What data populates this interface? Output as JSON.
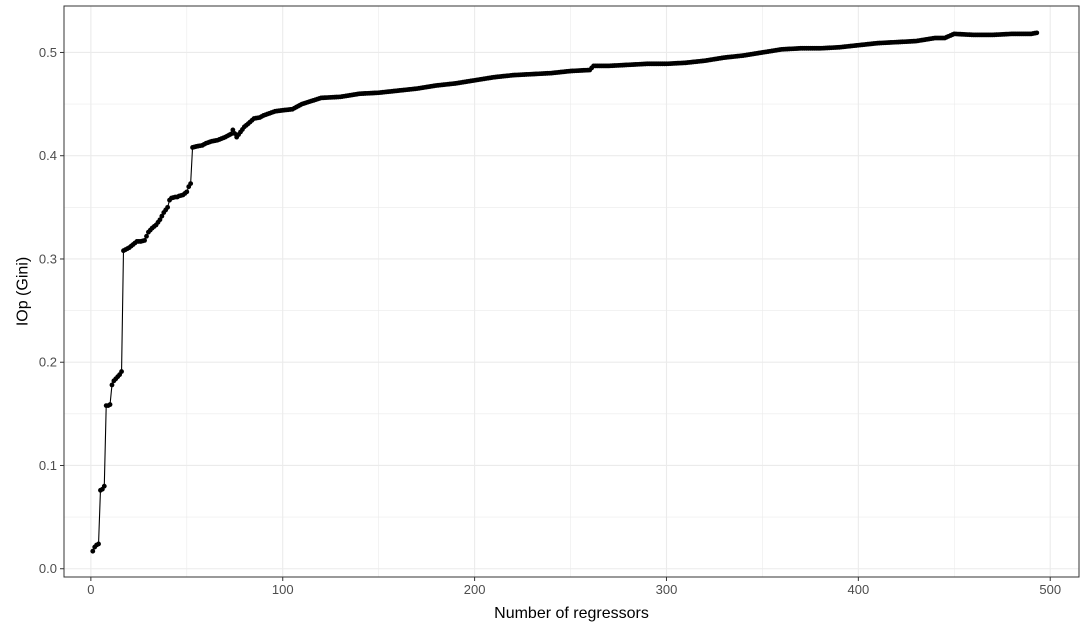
{
  "chart_data": {
    "type": "line",
    "title": "",
    "xlabel": "Number of regressors",
    "ylabel": "IOp (Gini)",
    "xlim": [
      -14,
      515
    ],
    "ylim": [
      -0.008,
      0.545
    ],
    "x_ticks": [
      0,
      100,
      200,
      300,
      400,
      500
    ],
    "x_tick_labels": [
      "0",
      "100",
      "200",
      "300",
      "400",
      "500"
    ],
    "y_ticks": [
      0.0,
      0.1,
      0.2,
      0.3,
      0.4,
      0.5
    ],
    "y_tick_labels": [
      "0.0",
      "0.1",
      "0.2",
      "0.3",
      "0.4",
      "0.5"
    ],
    "grid": true,
    "legend": "none",
    "colors": {
      "line": "#000000",
      "point": "#000000",
      "grid": "#ebebeb",
      "panel_border": "#333333",
      "background": "#ffffff"
    },
    "series": [
      {
        "x": [
          1,
          2,
          3,
          4,
          5,
          6,
          7,
          8,
          9,
          10,
          11,
          12,
          13,
          14,
          15,
          16,
          17,
          18,
          19,
          20,
          22,
          24,
          26,
          28,
          30,
          32,
          34,
          36,
          38,
          40,
          41,
          42,
          44,
          45,
          46,
          48,
          50,
          51,
          52,
          53,
          55,
          58,
          60,
          63,
          66,
          70,
          73,
          74,
          76,
          78,
          80,
          82,
          85,
          88,
          90,
          93,
          96,
          100,
          105,
          110,
          115,
          120,
          130,
          140,
          150,
          160,
          170,
          180,
          190,
          200,
          210,
          220,
          230,
          240,
          250,
          260,
          262,
          270,
          280,
          290,
          300,
          310,
          320,
          330,
          340,
          350,
          360,
          370,
          380,
          390,
          400,
          410,
          420,
          430,
          440,
          445,
          450,
          460,
          470,
          480,
          490,
          493
        ],
        "y": [
          0.017,
          0.021,
          0.023,
          0.024,
          0.076,
          0.077,
          0.08,
          0.158,
          0.158,
          0.159,
          0.178,
          0.182,
          0.184,
          0.186,
          0.188,
          0.191,
          0.308,
          0.309,
          0.31,
          0.311,
          0.314,
          0.317,
          0.317,
          0.318,
          0.326,
          0.33,
          0.333,
          0.338,
          0.345,
          0.35,
          0.357,
          0.359,
          0.36,
          0.36,
          0.361,
          0.362,
          0.365,
          0.37,
          0.373,
          0.408,
          0.409,
          0.41,
          0.412,
          0.414,
          0.415,
          0.418,
          0.421,
          0.425,
          0.418,
          0.423,
          0.428,
          0.431,
          0.436,
          0.437,
          0.439,
          0.441,
          0.443,
          0.444,
          0.445,
          0.45,
          0.453,
          0.456,
          0.457,
          0.46,
          0.461,
          0.463,
          0.465,
          0.468,
          0.47,
          0.473,
          0.476,
          0.478,
          0.479,
          0.48,
          0.482,
          0.483,
          0.487,
          0.487,
          0.488,
          0.489,
          0.489,
          0.49,
          0.492,
          0.495,
          0.497,
          0.5,
          0.503,
          0.504,
          0.504,
          0.505,
          0.507,
          0.509,
          0.51,
          0.511,
          0.514,
          0.514,
          0.518,
          0.517,
          0.517,
          0.518,
          0.518,
          0.519
        ]
      }
    ]
  }
}
